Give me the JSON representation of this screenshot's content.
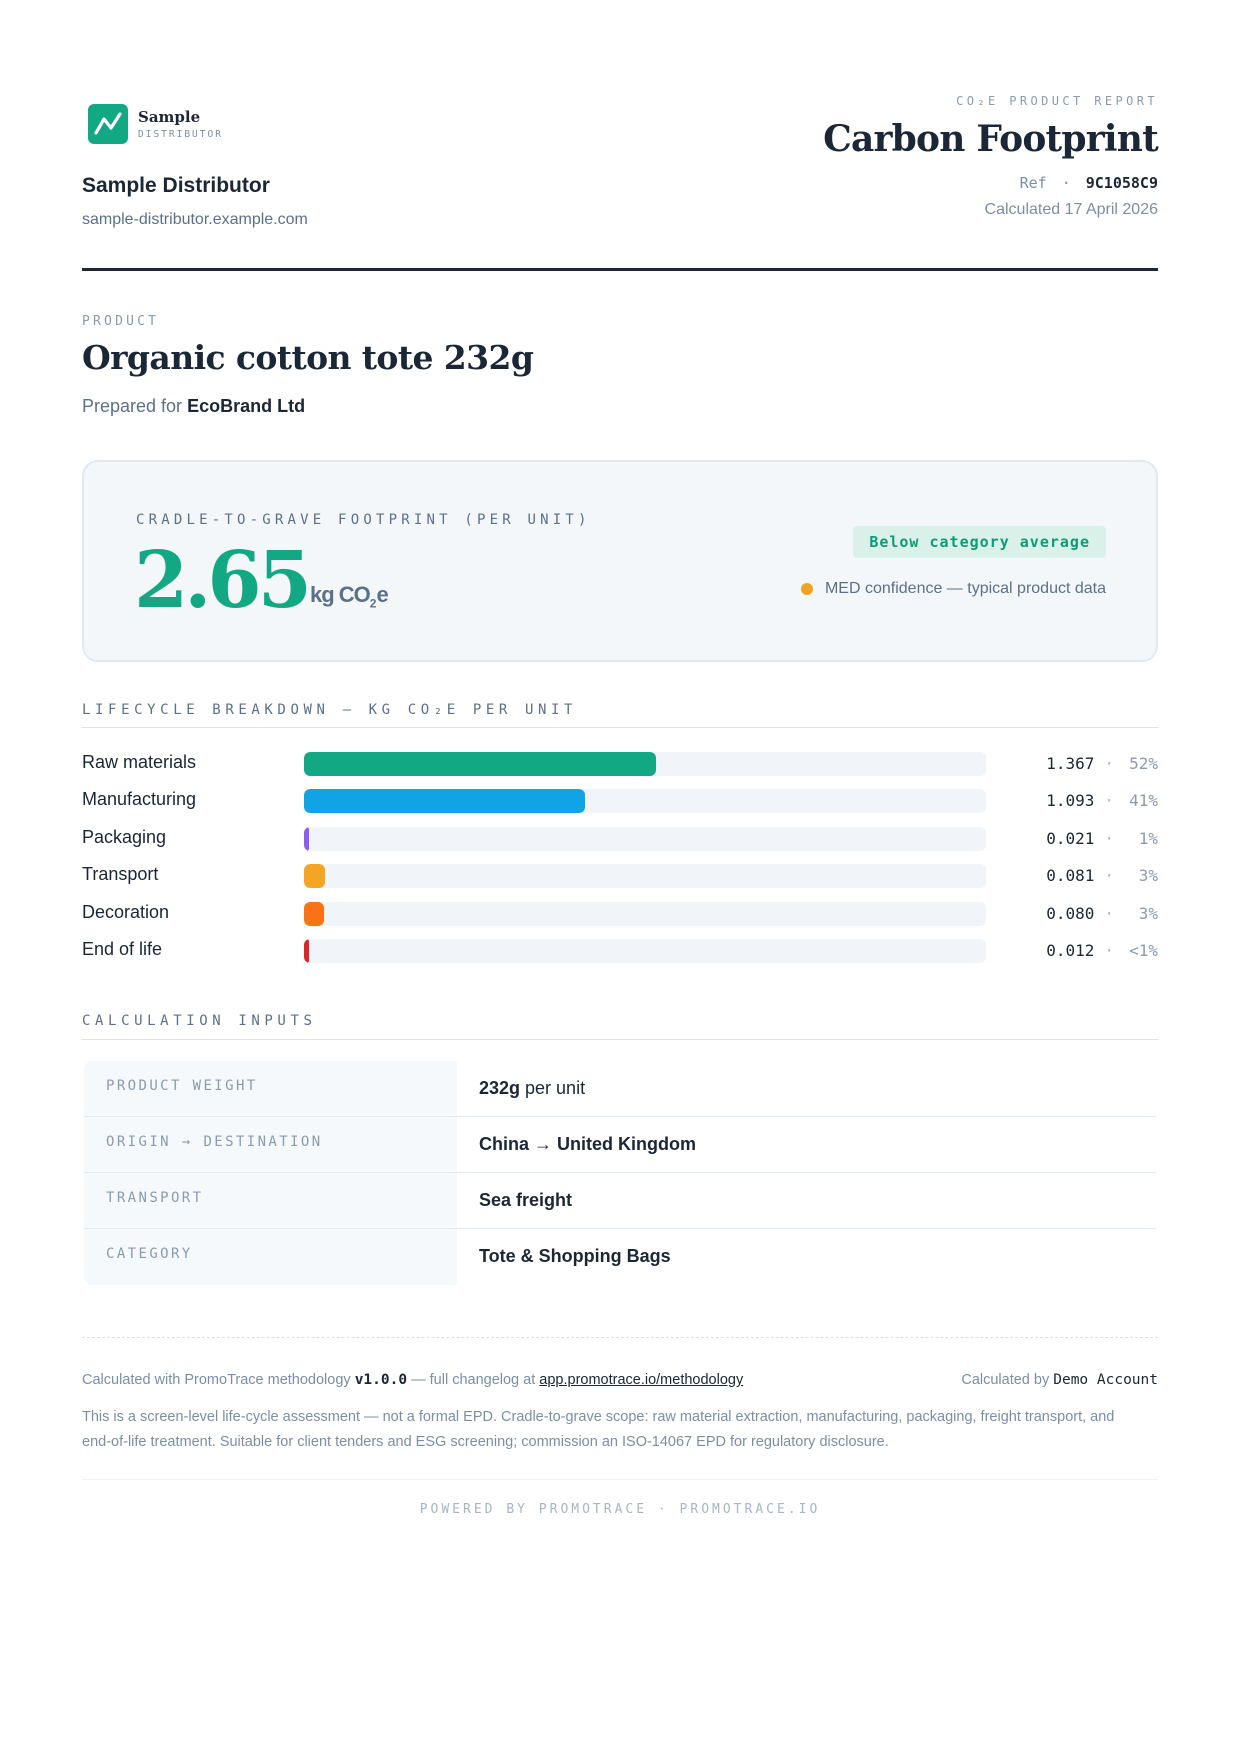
{
  "brand": {
    "logo_name": "Sample",
    "logo_sub": "DISTRIBUTOR",
    "distributor_name": "Sample Distributor",
    "distributor_url": "sample-distributor.example.com",
    "logo_icon": "trend-line-icon",
    "accent_color": "#13a884"
  },
  "header": {
    "eyebrow": "CO₂E PRODUCT REPORT",
    "title": "Carbon Footprint",
    "ref_label": "Ref",
    "ref_sep": "·",
    "ref_value": "9C1058C9",
    "calculated": "Calculated 17 April 2026"
  },
  "product": {
    "eyebrow": "PRODUCT",
    "name": "Organic cotton tote 232g",
    "prepared_prefix": "Prepared for",
    "client": "EcoBrand Ltd"
  },
  "footprint": {
    "eyebrow": "CRADLE-TO-GRAVE FOOTPRINT (PER UNIT)",
    "value": "2.65",
    "unit_main": "kg CO",
    "unit_sub": "2",
    "unit_tail": "e",
    "badge": "Below category average",
    "badge_color": "#d9f1e8",
    "confidence": "MED confidence — typical product data",
    "confidence_color": "#f0a320"
  },
  "lifecycle": {
    "eyebrow": "LIFECYCLE BREAKDOWN — KG CO₂E PER UNIT",
    "sep": "·",
    "rows": [
      {
        "label": "Raw materials",
        "value": "1.367",
        "pct": "52%",
        "share": 0.516,
        "color": "#13a884"
      },
      {
        "label": "Manufacturing",
        "value": "1.093",
        "pct": "41%",
        "share": 0.412,
        "color": "#10a4e6"
      },
      {
        "label": "Packaging",
        "value": "0.021",
        "pct": "1%",
        "share": 0.008,
        "color": "#8b5cf6"
      },
      {
        "label": "Transport",
        "value": "0.081",
        "pct": "3%",
        "share": 0.031,
        "color": "#f5a524"
      },
      {
        "label": "Decoration",
        "value": "0.080",
        "pct": "3%",
        "share": 0.03,
        "color": "#f97316"
      },
      {
        "label": "End of life",
        "value": "0.012",
        "pct": "<1%",
        "share": 0.005,
        "color": "#dc2626"
      }
    ]
  },
  "inputs": {
    "eyebrow": "CALCULATION INPUTS",
    "rows": [
      {
        "key": "PRODUCT WEIGHT",
        "value_strong": "232g",
        "value_rest": " per unit"
      },
      {
        "key": "ORIGIN → DESTINATION",
        "value_strong": "China → United Kingdom",
        "value_rest": ""
      },
      {
        "key": "TRANSPORT",
        "value_strong": "Sea freight",
        "value_rest": ""
      },
      {
        "key": "CATEGORY",
        "value_strong": "Tote & Shopping Bags",
        "value_rest": ""
      }
    ]
  },
  "footer": {
    "method_prefix": "Calculated with PromoTrace methodology",
    "version": "v1.0.0",
    "method_mid": "— full changelog at",
    "method_link": "app.promotrace.io/methodology",
    "by_prefix": "Calculated by",
    "by_name": "Demo Account",
    "disclaimer": "This is a screen-level life-cycle assessment — not a formal EPD. Cradle-to-grave scope: raw material extraction, manufacturing, packaging, freight transport, and end-of-life treatment. Suitable for client tenders and ESG screening; commission an ISO-14067 EPD for regulatory disclosure.",
    "powered": "POWERED BY PROMOTRACE · PROMOTRACE.IO"
  }
}
